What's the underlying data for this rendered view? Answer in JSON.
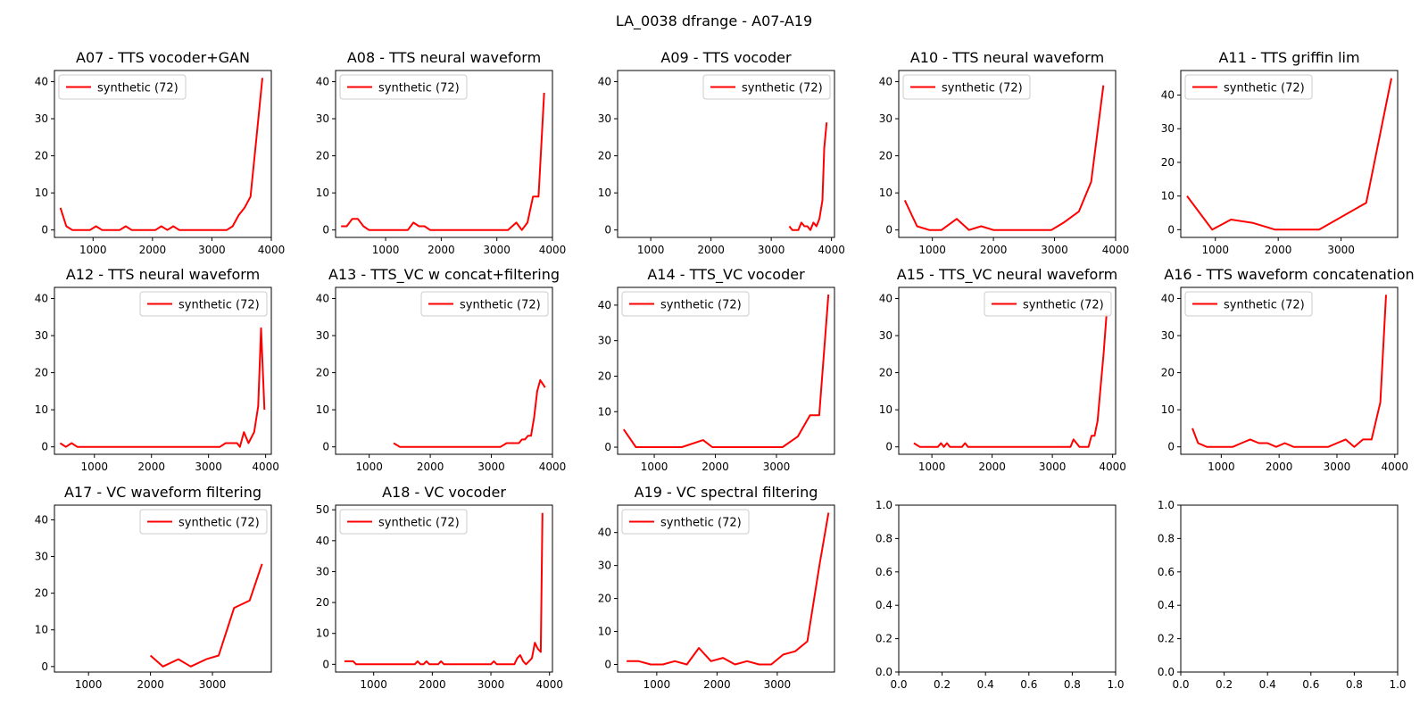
{
  "figure": {
    "title": "LA_0038 dfrange - A07-A19"
  },
  "chart_data": [
    {
      "type": "line",
      "title": "A07 - TTS vocoder+GAN",
      "xlim": [
        350,
        4000
      ],
      "ylim": [
        -2,
        43
      ],
      "xticks": [
        1000,
        2000,
        3000,
        4000
      ],
      "yticks": [
        0,
        10,
        20,
        30,
        40
      ],
      "legend": "upper left",
      "series": [
        {
          "name": "synthetic (72)",
          "color": "#ff0000",
          "x": [
            450,
            550,
            650,
            750,
            850,
            950,
            1050,
            1150,
            1250,
            1350,
            1450,
            1550,
            1650,
            1750,
            1850,
            1950,
            2050,
            2150,
            2250,
            2350,
            2450,
            2550,
            2650,
            2750,
            2850,
            2950,
            3050,
            3150,
            3250,
            3350,
            3450,
            3550,
            3650,
            3750,
            3850
          ],
          "y": [
            6,
            1,
            0,
            0,
            0,
            0,
            1,
            0,
            0,
            0,
            0,
            1,
            0,
            0,
            0,
            0,
            0,
            1,
            0,
            1,
            0,
            0,
            0,
            0,
            0,
            0,
            0,
            0,
            0,
            1,
            4,
            6,
            9,
            25,
            41
          ]
        }
      ]
    },
    {
      "type": "line",
      "title": "A08 - TTS neural waveform",
      "xlim": [
        100,
        4000
      ],
      "ylim": [
        -2,
        43
      ],
      "xticks": [
        1000,
        2000,
        3000,
        4000
      ],
      "yticks": [
        0,
        10,
        20,
        30,
        40
      ],
      "legend": "upper left",
      "series": [
        {
          "name": "synthetic (72)",
          "color": "#ff0000",
          "x": [
            200,
            300,
            400,
            500,
            600,
            700,
            800,
            1400,
            1500,
            1600,
            1700,
            1800,
            3200,
            3350,
            3450,
            3550,
            3650,
            3750,
            3850
          ],
          "y": [
            1,
            1,
            3,
            3,
            1,
            0,
            0,
            0,
            2,
            1,
            1,
            0,
            0,
            2,
            0,
            2,
            9,
            9,
            37
          ]
        }
      ]
    },
    {
      "type": "line",
      "title": "A09 - TTS vocoder",
      "xlim": [
        450,
        4050
      ],
      "ylim": [
        -2,
        43
      ],
      "xticks": [
        1000,
        2000,
        3000,
        4000
      ],
      "yticks": [
        0,
        10,
        20,
        30,
        40
      ],
      "legend": "upper right",
      "series": [
        {
          "name": "synthetic (72)",
          "color": "#ff0000",
          "x": [
            3300,
            3350,
            3450,
            3500,
            3550,
            3600,
            3650,
            3700,
            3750,
            3800,
            3850,
            3880,
            3920
          ],
          "y": [
            1,
            0,
            0,
            2,
            1,
            1,
            0,
            2,
            1,
            3,
            8,
            22,
            29
          ]
        }
      ]
    },
    {
      "type": "line",
      "title": "A10 - TTS neural waveform",
      "xlim": [
        450,
        4000
      ],
      "ylim": [
        -2,
        43
      ],
      "xticks": [
        1000,
        2000,
        3000,
        4000
      ],
      "yticks": [
        0,
        10,
        20,
        30,
        40
      ],
      "legend": "upper left",
      "series": [
        {
          "name": "synthetic (72)",
          "color": "#ff0000",
          "x": [
            550,
            750,
            950,
            1150,
            1400,
            1600,
            1800,
            2000,
            2200,
            2400,
            2600,
            2800,
            2950,
            3150,
            3400,
            3600,
            3800
          ],
          "y": [
            8,
            1,
            0,
            0,
            3,
            0,
            1,
            0,
            0,
            0,
            0,
            0,
            0,
            2,
            5,
            13,
            39
          ]
        }
      ]
    },
    {
      "type": "line",
      "title": "A11 - TTS griffin lim",
      "xlim": [
        450,
        3900
      ],
      "ylim": [
        -2.3,
        47.3
      ],
      "xticks": [
        1000,
        2000,
        3000
      ],
      "yticks": [
        0,
        10,
        20,
        30,
        40
      ],
      "legend": "upper left",
      "series": [
        {
          "name": "synthetic (72)",
          "color": "#ff0000",
          "x": [
            550,
            950,
            1250,
            1600,
            1950,
            2300,
            2650,
            3400,
            3800
          ],
          "y": [
            10,
            0,
            3,
            2,
            0,
            0,
            0,
            8,
            45
          ]
        }
      ]
    },
    {
      "type": "line",
      "title": "A12 - TTS neural waveform",
      "xlim": [
        300,
        4100
      ],
      "ylim": [
        -2,
        43
      ],
      "xticks": [
        1000,
        2000,
        3000,
        4000
      ],
      "yticks": [
        0,
        10,
        20,
        30,
        40
      ],
      "legend": "upper right",
      "series": [
        {
          "name": "synthetic (72)",
          "color": "#ff0000",
          "x": [
            400,
            500,
            600,
            700,
            800,
            3200,
            3300,
            3400,
            3500,
            3550,
            3620,
            3700,
            3800,
            3870,
            3920,
            3980
          ],
          "y": [
            1,
            0,
            1,
            0,
            0,
            0,
            1,
            1,
            1,
            0,
            4,
            1,
            4,
            11,
            32,
            10
          ]
        }
      ]
    },
    {
      "type": "line",
      "title": "A13 - TTS_VC w concat+filtering",
      "xlim": [
        450,
        4000
      ],
      "ylim": [
        -2,
        43
      ],
      "xticks": [
        1000,
        2000,
        3000,
        4000
      ],
      "yticks": [
        0,
        10,
        20,
        30,
        40
      ],
      "legend": "upper right",
      "series": [
        {
          "name": "synthetic (72)",
          "color": "#ff0000",
          "x": [
            1400,
            1500,
            1600,
            2000,
            2500,
            3000,
            3150,
            3250,
            3350,
            3450,
            3500,
            3550,
            3600,
            3650,
            3700,
            3750,
            3800,
            3880
          ],
          "y": [
            1,
            0,
            0,
            0,
            0,
            0,
            0,
            1,
            1,
            1,
            2,
            2,
            3,
            3,
            8,
            15,
            18,
            16
          ]
        }
      ]
    },
    {
      "type": "line",
      "title": "A14 - TTS_VC vocoder",
      "xlim": [
        400,
        3950
      ],
      "ylim": [
        -2,
        45
      ],
      "xticks": [
        1000,
        2000,
        3000
      ],
      "yticks": [
        0,
        10,
        20,
        30,
        40
      ],
      "legend": "upper left",
      "series": [
        {
          "name": "synthetic (72)",
          "color": "#ff0000",
          "x": [
            500,
            700,
            950,
            1200,
            1450,
            1800,
            1950,
            2200,
            2450,
            2700,
            2950,
            3100,
            3350,
            3550,
            3700,
            3850
          ],
          "y": [
            5,
            0,
            0,
            0,
            0,
            2,
            0,
            0,
            0,
            0,
            0,
            0,
            3,
            9,
            9,
            43
          ]
        }
      ]
    },
    {
      "type": "line",
      "title": "A15 - TTS_VC neural waveform",
      "xlim": [
        450,
        4050
      ],
      "ylim": [
        -2,
        43
      ],
      "xticks": [
        1000,
        2000,
        3000,
        4000
      ],
      "yticks": [
        0,
        10,
        20,
        30,
        40
      ],
      "legend": "upper right",
      "series": [
        {
          "name": "synthetic (72)",
          "color": "#ff0000",
          "x": [
            700,
            800,
            900,
            1000,
            1100,
            1150,
            1200,
            1250,
            1300,
            1350,
            1450,
            1500,
            1550,
            1600,
            2000,
            2500,
            3000,
            3300,
            3350,
            3450,
            3550,
            3600,
            3650,
            3700,
            3750,
            3800,
            3850,
            3900
          ],
          "y": [
            1,
            0,
            0,
            0,
            0,
            1,
            0,
            1,
            0,
            0,
            0,
            0,
            1,
            0,
            0,
            0,
            0,
            0,
            2,
            0,
            0,
            0,
            3,
            3,
            7,
            16,
            25,
            36
          ]
        }
      ]
    },
    {
      "type": "line",
      "title": "A16 - TTS waveform concatenation",
      "xlim": [
        300,
        4050
      ],
      "ylim": [
        -2,
        43
      ],
      "xticks": [
        1000,
        2000,
        3000,
        4000
      ],
      "yticks": [
        0,
        10,
        20,
        30,
        40
      ],
      "legend": "upper left",
      "series": [
        {
          "name": "synthetic (72)",
          "color": "#ff0000",
          "x": [
            500,
            600,
            750,
            850,
            950,
            1200,
            1350,
            1500,
            1650,
            1800,
            1950,
            2100,
            2250,
            2450,
            2650,
            2850,
            3000,
            3150,
            3300,
            3450,
            3600,
            3750,
            3850
          ],
          "y": [
            5,
            1,
            0,
            0,
            0,
            0,
            1,
            2,
            1,
            1,
            0,
            1,
            0,
            0,
            0,
            0,
            1,
            2,
            0,
            2,
            2,
            12,
            41
          ]
        }
      ]
    },
    {
      "type": "line",
      "title": "A17 - VC waveform filtering",
      "xlim": [
        450,
        3950
      ],
      "ylim": [
        -1.5,
        44
      ],
      "xticks": [
        1000,
        2000,
        3000
      ],
      "yticks": [
        0,
        10,
        20,
        30,
        40
      ],
      "legend": "upper right",
      "series": [
        {
          "name": "synthetic (72)",
          "color": "#ff0000",
          "x": [
            2000,
            2200,
            2450,
            2650,
            2900,
            3100,
            3350,
            3600,
            3800
          ],
          "y": [
            3,
            0,
            2,
            0,
            2,
            3,
            16,
            18,
            28
          ]
        }
      ]
    },
    {
      "type": "line",
      "title": "A18 - VC vocoder",
      "xlim": [
        350,
        4050
      ],
      "ylim": [
        -2.5,
        51.5
      ],
      "xticks": [
        1000,
        2000,
        3000,
        4000
      ],
      "yticks": [
        0,
        10,
        20,
        30,
        40,
        50
      ],
      "legend": "upper left",
      "series": [
        {
          "name": "synthetic (72)",
          "color": "#ff0000",
          "x": [
            500,
            600,
            650,
            700,
            800,
            1000,
            1200,
            1400,
            1600,
            1700,
            1750,
            1800,
            1850,
            1900,
            1950,
            2000,
            2100,
            2150,
            2200,
            2300,
            2500,
            2700,
            2900,
            3000,
            3050,
            3100,
            3200,
            3300,
            3400,
            3450,
            3500,
            3550,
            3600,
            3650,
            3700,
            3750,
            3800,
            3850,
            3880
          ],
          "y": [
            1,
            1,
            1,
            0,
            0,
            0,
            0,
            0,
            0,
            0,
            1,
            0,
            0,
            1,
            0,
            0,
            0,
            1,
            0,
            0,
            0,
            0,
            0,
            0,
            1,
            0,
            0,
            0,
            0,
            2,
            3,
            1,
            0,
            1,
            2,
            7,
            5,
            4,
            49
          ]
        }
      ]
    },
    {
      "type": "line",
      "title": "A19 - VC spectral filtering",
      "xlim": [
        350,
        3950
      ],
      "ylim": [
        -2.3,
        48.3
      ],
      "xticks": [
        1000,
        2000,
        3000
      ],
      "yticks": [
        0,
        10,
        20,
        30,
        40
      ],
      "legend": "upper left",
      "series": [
        {
          "name": "synthetic (72)",
          "color": "#ff0000",
          "x": [
            500,
            700,
            900,
            1100,
            1300,
            1500,
            1700,
            1900,
            2100,
            2300,
            2500,
            2700,
            2900,
            3100,
            3300,
            3500,
            3700,
            3850
          ],
          "y": [
            1,
            1,
            0,
            0,
            1,
            0,
            5,
            1,
            2,
            0,
            1,
            0,
            0,
            3,
            4,
            7,
            30,
            46
          ]
        }
      ]
    },
    {
      "type": "empty",
      "title": "",
      "xlim": [
        0,
        1
      ],
      "ylim": [
        0,
        1
      ],
      "xticks": [
        "0.0",
        "0.2",
        "0.4",
        "0.6",
        "0.8",
        "1.0"
      ],
      "yticks": [
        "0.0",
        "0.2",
        "0.4",
        "0.6",
        "0.8",
        "1.0"
      ]
    },
    {
      "type": "empty",
      "title": "",
      "xlim": [
        0,
        1
      ],
      "ylim": [
        0,
        1
      ],
      "xticks": [
        "0.0",
        "0.2",
        "0.4",
        "0.6",
        "0.8",
        "1.0"
      ],
      "yticks": [
        "0.0",
        "0.2",
        "0.4",
        "0.6",
        "0.8",
        "1.0"
      ]
    }
  ]
}
